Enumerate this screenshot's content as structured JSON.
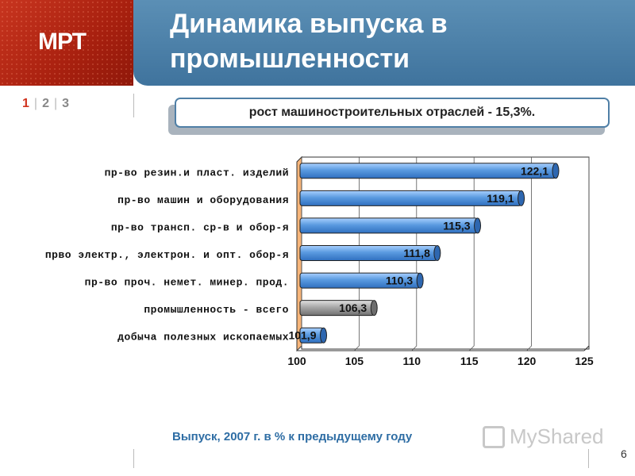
{
  "header": {
    "logo_text": "МРТ",
    "title_line1": "Динамика выпуска в",
    "title_line2": "промышленности"
  },
  "pager": {
    "items": [
      "1",
      "2",
      "3"
    ],
    "current": "1"
  },
  "banner": {
    "text": "рост машиностроительных отраслей - 15,3%."
  },
  "chart_data": {
    "type": "bar",
    "orientation": "horizontal",
    "categories": [
      "пр-во резин.и пласт. изделий",
      "пр-во машин и оборудования",
      "пр-во трансп. ср-в и обор-я",
      "прво электр., электрон. и опт. обор-я",
      "пр-во проч. немет. минер. прод.",
      "промышленность  - всего",
      "добыча полезных ископаемых"
    ],
    "values": [
      122.1,
      119.1,
      115.3,
      111.8,
      110.3,
      106.3,
      101.9
    ],
    "value_labels": [
      "122,1",
      "119,1",
      "115,3",
      "111,8",
      "110,3",
      "106,3",
      "101,9"
    ],
    "highlight_index": 5,
    "xlim": [
      100,
      125
    ],
    "xticks": [
      "100",
      "105",
      "110",
      "115",
      "120",
      "125"
    ],
    "grid": true,
    "colors": {
      "bar": "#5b9be0",
      "highlight": "#9a9a9a"
    }
  },
  "footer": {
    "caption": "Выпуск, 2007 г. в % к предыдущему году"
  },
  "watermark": {
    "text": "MyShared"
  },
  "page_number": "6"
}
